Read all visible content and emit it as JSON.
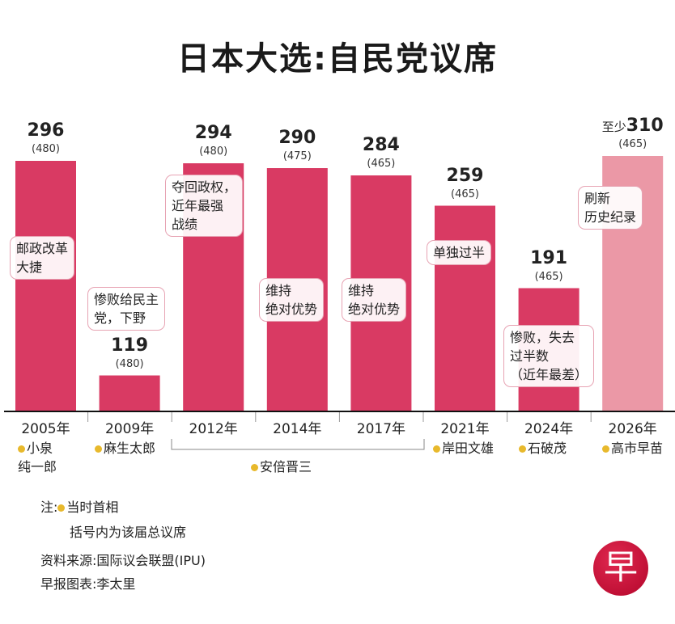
{
  "title": "日本大选:自民党议席",
  "chart_data": {
    "type": "bar",
    "categories": [
      "2005年",
      "2009年",
      "2012年",
      "2014年",
      "2017年",
      "2021年",
      "2024年",
      "2026年"
    ],
    "values": [
      296,
      119,
      294,
      290,
      284,
      259,
      191,
      310
    ],
    "value_labels": [
      "296",
      "119",
      "294",
      "290",
      "284",
      "259",
      "191",
      "310"
    ],
    "value_prefix": [
      "",
      "",
      "",
      "",
      "",
      "",
      "",
      "至少"
    ],
    "totals": [
      "(480)",
      "(480)",
      "(480)",
      "(475)",
      "(465)",
      "(465)",
      "(465)",
      "(465)"
    ],
    "annotations": [
      "邮政改革\n大捷",
      "惨败给民主\n党，下野",
      "夺回政权，\n近年最强\n战绩",
      "维持\n绝对优势",
      "维持\n绝对优势",
      "单独过半",
      "惨败，失去\n过半数\n（近年最差）",
      "刷新\n历史纪录"
    ],
    "prime_ministers": [
      "小泉\n纯一郎",
      "麻生太郎",
      "安倍晋三",
      "岸田文雄",
      "石破茂",
      "高市早苗"
    ],
    "colors": {
      "bar": "#d93a63",
      "bar_projected": "#eb98a6",
      "pm_dot": "#e8b92c"
    },
    "ylim": [
      90,
      310
    ]
  },
  "notes": {
    "label": "注:",
    "pm_note": "当时首相",
    "total_note": "括号内为该届总议席",
    "source": "资料来源:国际议会联盟(IPU)",
    "credit": "早报图表:李太里"
  },
  "logo": "早"
}
